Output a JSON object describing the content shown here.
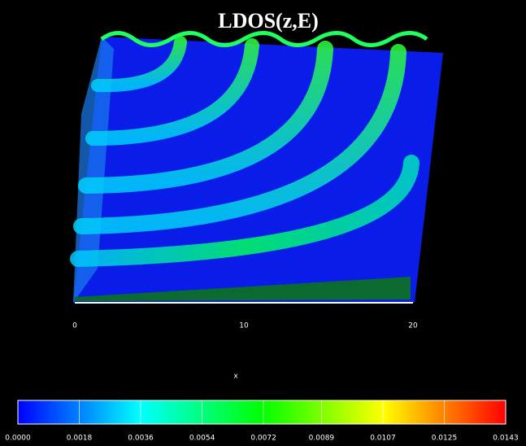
{
  "chart_data": {
    "type": "surface",
    "title": "LDOS(z,E)",
    "xlabel": "x",
    "xlim": [
      0,
      20
    ],
    "xticks": [
      0,
      10,
      20
    ],
    "colorbar": {
      "lim": [
        0,
        0.0143
      ],
      "ticks": [
        {
          "value": 0,
          "label": "0.0000"
        },
        0.0018,
        0.0036,
        0.0054,
        0.0072,
        0.0089,
        0.0107,
        0.0125,
        0.0143
      ],
      "colors": [
        "#0000ff",
        "#00ffff",
        "#00ff00",
        "#ffff00",
        "#ff0000"
      ]
    }
  }
}
